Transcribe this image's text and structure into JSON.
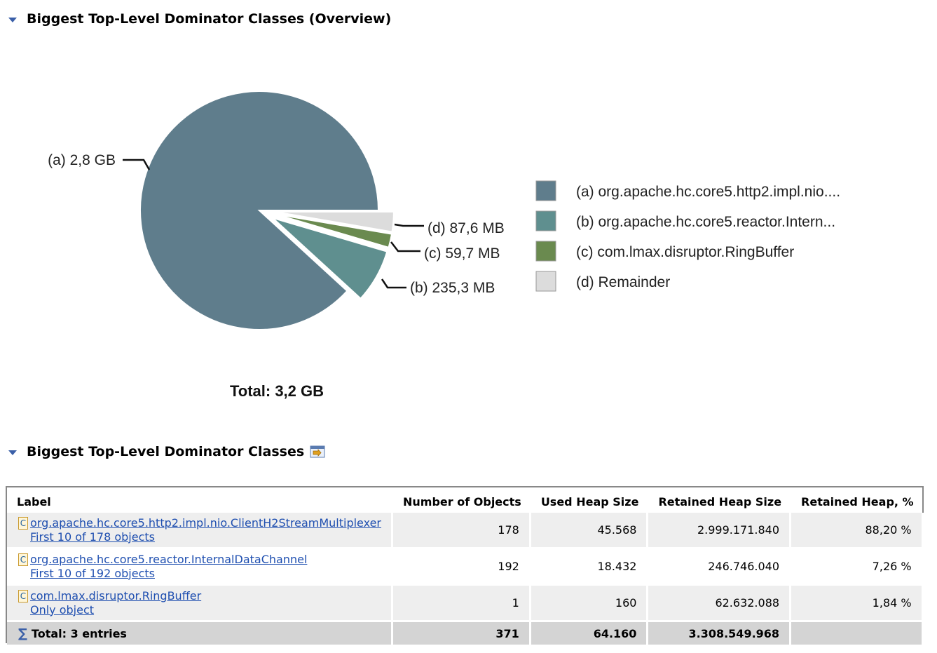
{
  "overview": {
    "title": "Biggest Top-Level Dominator Classes (Overview)"
  },
  "chart_data": {
    "type": "pie",
    "slices": [
      {
        "key": "(a)",
        "value_label": "2,8 GB",
        "legend": "org.apache.hc.core5.http2.impl.nio....",
        "color": "#5f7d8c",
        "percent": 88.2
      },
      {
        "key": "(b)",
        "value_label": "235,3 MB",
        "legend": "org.apache.hc.core5.reactor.Intern...",
        "color": "#5f8f8f",
        "percent": 7.26
      },
      {
        "key": "(c)",
        "value_label": "59,7 MB",
        "legend": "com.lmax.disruptor.RingBuffer",
        "color": "#6a8a4f",
        "percent": 1.84
      },
      {
        "key": "(d)",
        "value_label": "87,6 MB",
        "legend": "Remainder",
        "color": "#dcdcdc",
        "percent": 2.7
      }
    ],
    "total": "Total: 3,2 GB",
    "legend_position": "right"
  },
  "table_section": {
    "title": "Biggest Top-Level Dominator Classes"
  },
  "table": {
    "columns": [
      "Label",
      "Number of Objects",
      "Used Heap Size",
      "Retained Heap Size",
      "Retained Heap, %"
    ],
    "rows": [
      {
        "name": "org.apache.hc.core5.http2.impl.nio.ClientH2StreamMultiplexer",
        "sub": "First 10 of 178 objects",
        "objects": "178",
        "used": "45.568",
        "retained": "2.999.171.840",
        "percent": "88,20 %"
      },
      {
        "name": "org.apache.hc.core5.reactor.InternalDataChannel",
        "sub": "First 10 of 192 objects",
        "objects": "192",
        "used": "18.432",
        "retained": "246.746.040",
        "percent": "7,26 %"
      },
      {
        "name": "com.lmax.disruptor.RingBuffer",
        "sub": "Only object",
        "objects": "1",
        "used": "160",
        "retained": "62.632.088",
        "percent": "1,84 %"
      }
    ],
    "total": {
      "label": "Total: 3 entries",
      "objects": "371",
      "used": "64.160",
      "retained": "3.308.549.968",
      "percent": ""
    },
    "class_icon": "C"
  }
}
